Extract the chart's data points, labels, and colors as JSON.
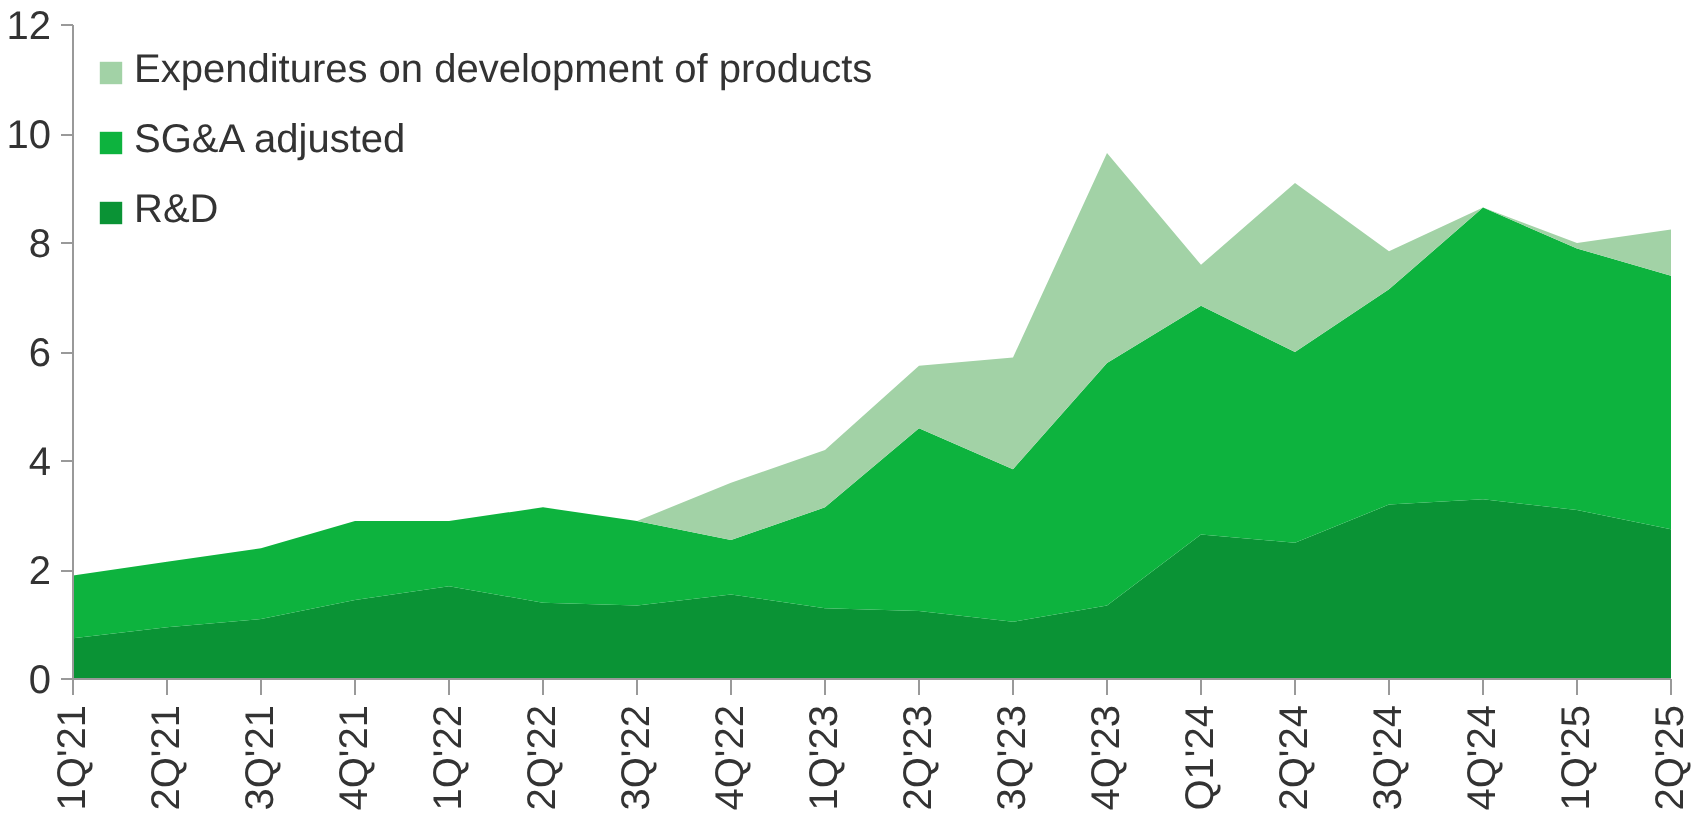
{
  "chart_data": {
    "type": "area",
    "stacked": true,
    "categories": [
      "1Q'21",
      "2Q'21",
      "3Q'21",
      "4Q'21",
      "1Q'22",
      "2Q'22",
      "3Q'22",
      "4Q'22",
      "1Q'23",
      "2Q'23",
      "3Q'23",
      "4Q'23",
      "Q1'24",
      "2Q'24",
      "3Q'24",
      "4Q'24",
      "1Q'25",
      "2Q'25"
    ],
    "series": [
      {
        "name": "R&D",
        "color": "#0a9335",
        "values": [
          0.75,
          0.95,
          1.1,
          1.45,
          1.7,
          1.4,
          1.35,
          1.55,
          1.3,
          1.25,
          1.05,
          1.35,
          2.65,
          2.5,
          3.2,
          3.3,
          3.1,
          2.75
        ]
      },
      {
        "name": "SG&A adjusted",
        "color": "#0db33e",
        "values": [
          1.15,
          1.2,
          1.3,
          1.45,
          1.2,
          1.75,
          1.55,
          1.0,
          1.85,
          3.35,
          2.8,
          4.45,
          4.2,
          3.5,
          3.95,
          5.35,
          4.8,
          4.65
        ]
      },
      {
        "name": "Expenditures on development of products",
        "color": "#a2d2a6",
        "values": [
          0,
          0,
          0,
          0,
          0,
          0,
          0,
          1.05,
          1.05,
          1.15,
          2.05,
          3.85,
          0.75,
          3.1,
          0.7,
          0,
          0.1,
          0.85
        ]
      }
    ],
    "ylim": [
      0,
      12
    ],
    "yticks": [
      0,
      2,
      4,
      6,
      8,
      10,
      12
    ],
    "grid": false,
    "legend": "top left"
  }
}
